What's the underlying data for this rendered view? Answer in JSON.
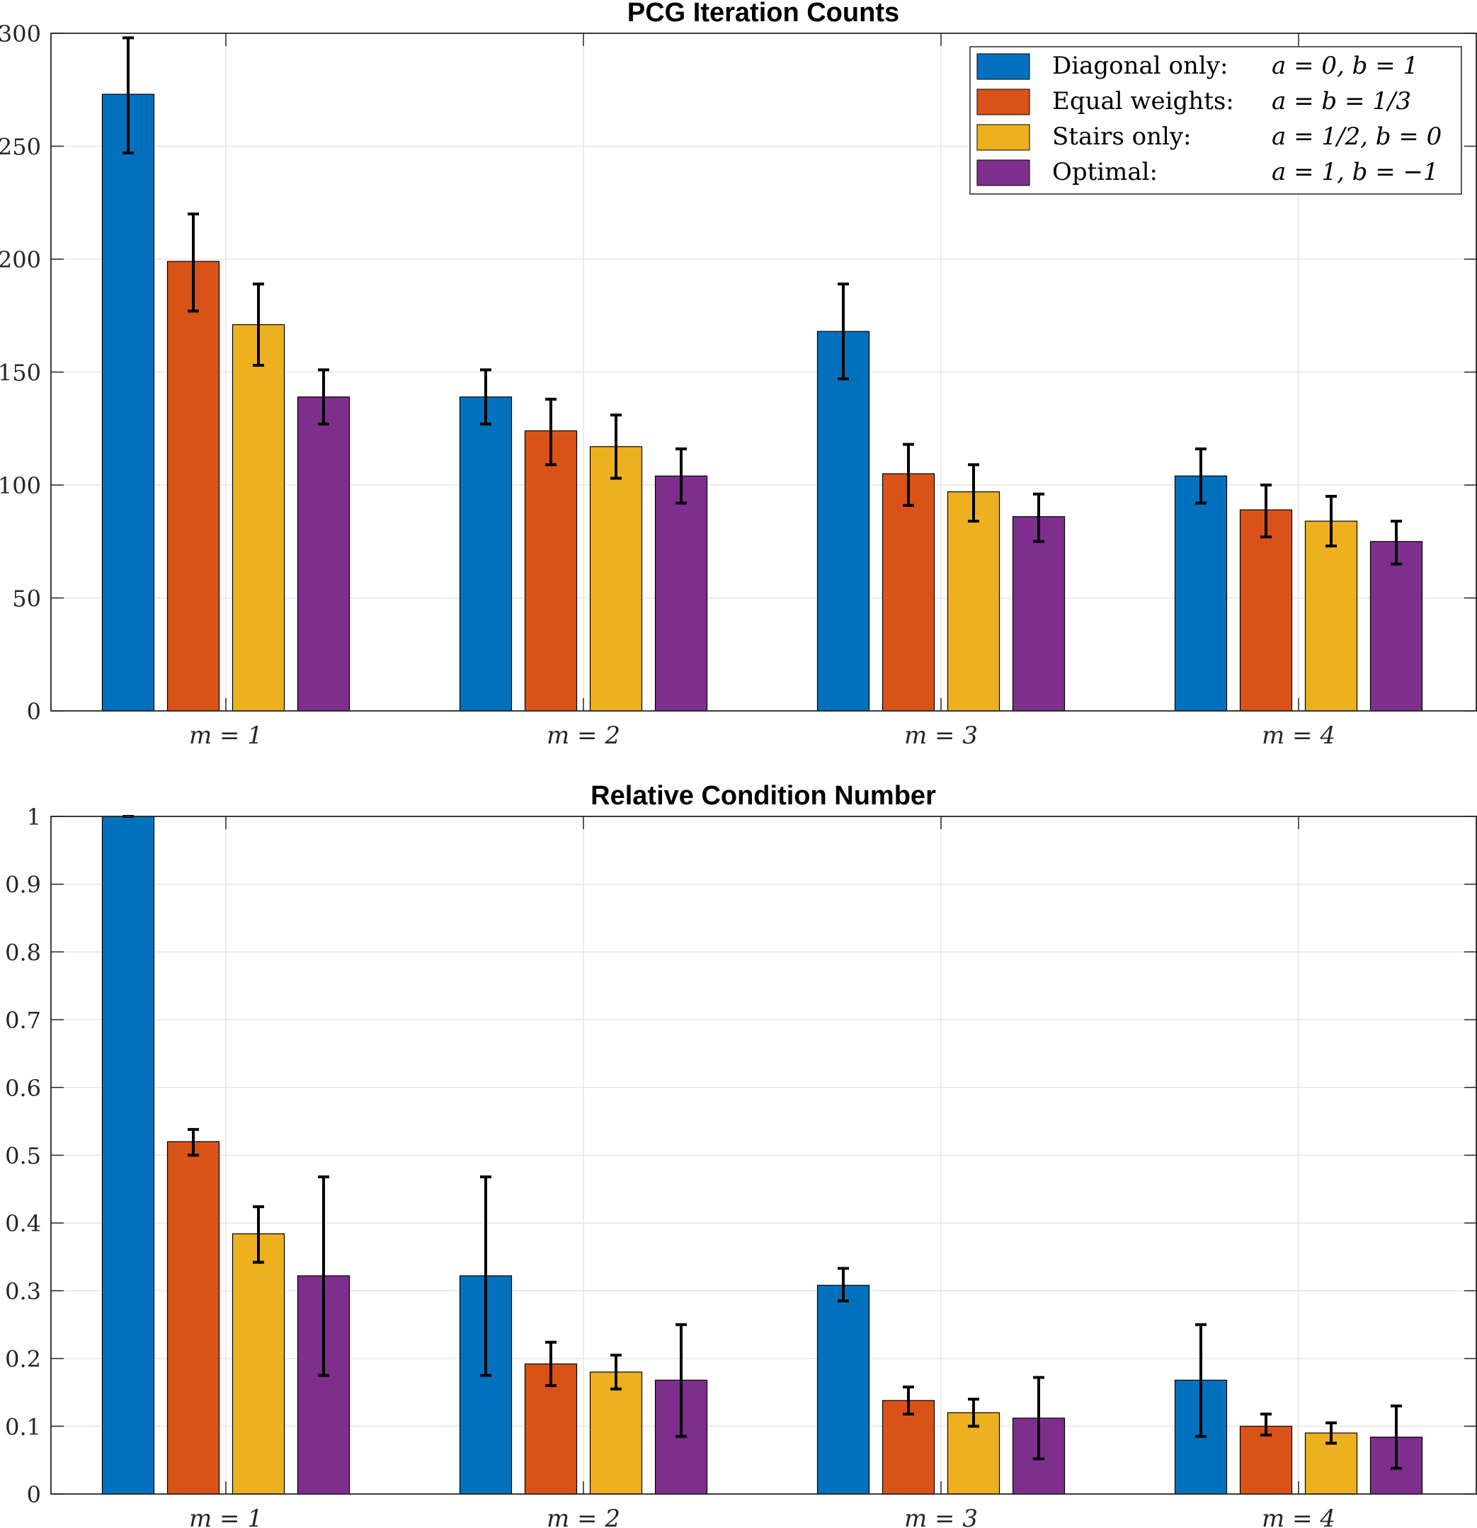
{
  "legend": [
    {
      "series": "Diagonal only:",
      "formula": "a = 0, b = 1",
      "color": "#0072BD"
    },
    {
      "series": "Equal weights:",
      "formula": "a = b = 1/3",
      "color": "#D95319"
    },
    {
      "series": "Stairs only:",
      "formula": "a = 1/2, b = 0",
      "color": "#EDB120"
    },
    {
      "series": "Optimal:",
      "formula": "a = 1, b = −1",
      "color": "#7E2F8E"
    }
  ],
  "chart_data": [
    {
      "type": "bar",
      "title": "PCG Iteration Counts",
      "categories": [
        "m = 1",
        "m = 2",
        "m = 3",
        "m = 4"
      ],
      "ylim": [
        0,
        300
      ],
      "yticks": [
        0,
        50,
        100,
        150,
        200,
        250,
        300
      ],
      "ytick_labels": [
        "0",
        "50",
        "100",
        "150",
        "200",
        "250",
        "300"
      ],
      "grid": true,
      "legend_position": "top-right",
      "series": [
        {
          "name": "Diagonal only",
          "values": [
            273,
            139,
            168,
            104
          ],
          "err_low": [
            247,
            127,
            147,
            92
          ],
          "err_high": [
            298,
            151,
            189,
            116
          ]
        },
        {
          "name": "Equal weights",
          "values": [
            199,
            124,
            105,
            89
          ],
          "err_low": [
            177,
            109,
            91,
            77
          ],
          "err_high": [
            220,
            138,
            118,
            100
          ]
        },
        {
          "name": "Stairs only",
          "values": [
            171,
            117,
            97,
            84
          ],
          "err_low": [
            153,
            103,
            84,
            73
          ],
          "err_high": [
            189,
            131,
            109,
            95
          ]
        },
        {
          "name": "Optimal",
          "values": [
            139,
            104,
            86,
            75
          ],
          "err_low": [
            127,
            92,
            75,
            65
          ],
          "err_high": [
            151,
            116,
            96,
            84
          ]
        }
      ]
    },
    {
      "type": "bar",
      "title": "Relative Condition Number",
      "categories": [
        "m = 1",
        "m = 2",
        "m = 3",
        "m = 4"
      ],
      "ylim": [
        0,
        1
      ],
      "yticks": [
        0,
        0.1,
        0.2,
        0.3,
        0.4,
        0.5,
        0.6,
        0.7,
        0.8,
        0.9,
        1
      ],
      "ytick_labels": [
        "0",
        "0.1",
        "0.2",
        "0.3",
        "0.4",
        "0.5",
        "0.6",
        "0.7",
        "0.8",
        "0.9",
        "1"
      ],
      "grid": true,
      "series": [
        {
          "name": "Diagonal only",
          "values": [
            1.0,
            0.322,
            0.308,
            0.168
          ],
          "err_low": [
            1.0,
            0.175,
            0.285,
            0.085
          ],
          "err_high": [
            1.0,
            0.468,
            0.333,
            0.25
          ]
        },
        {
          "name": "Equal weights",
          "values": [
            0.52,
            0.192,
            0.138,
            0.1
          ],
          "err_low": [
            0.5,
            0.16,
            0.118,
            0.087
          ],
          "err_high": [
            0.538,
            0.224,
            0.158,
            0.118
          ]
        },
        {
          "name": "Stairs only",
          "values": [
            0.384,
            0.18,
            0.12,
            0.09
          ],
          "err_low": [
            0.342,
            0.155,
            0.1,
            0.075
          ],
          "err_high": [
            0.424,
            0.205,
            0.14,
            0.105
          ]
        },
        {
          "name": "Optimal",
          "values": [
            0.322,
            0.168,
            0.112,
            0.084
          ],
          "err_low": [
            0.175,
            0.085,
            0.052,
            0.038
          ],
          "err_high": [
            0.468,
            0.25,
            0.172,
            0.13
          ]
        }
      ]
    }
  ]
}
